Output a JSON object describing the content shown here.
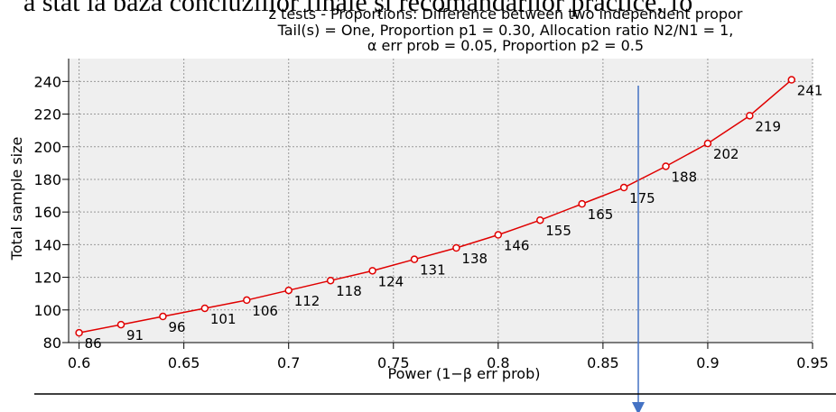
{
  "document_text": "a stat la baza concluziilor finale și recomandărilor practice, fo",
  "chart_data": {
    "type": "line",
    "title": "z tests - Proportions: Difference between two independent propor",
    "subtitle": [
      "Tail(s) = One, Proportion p1 = 0.30, Allocation ratio N2/N1 = 1,",
      "α err prob = 0.05, Proportion p2 = 0.5"
    ],
    "xlabel": "Power (1−β err prob)",
    "ylabel": "Total sample size",
    "x": [
      0.6,
      0.62,
      0.64,
      0.66,
      0.68,
      0.7,
      0.72,
      0.74,
      0.76,
      0.78,
      0.8,
      0.82,
      0.84,
      0.86,
      0.88,
      0.9,
      0.92,
      0.94
    ],
    "values": [
      86,
      91,
      96,
      101,
      106,
      112,
      118,
      124,
      131,
      138,
      146,
      155,
      165,
      175,
      188,
      202,
      219,
      241
    ],
    "color": "#e00000",
    "xlim": [
      0.595,
      0.95
    ],
    "xticks": [
      0.6,
      0.65,
      0.7,
      0.75,
      0.8,
      0.85,
      0.9,
      0.95
    ],
    "ylim": [
      80,
      254
    ],
    "yticks": [
      80,
      100,
      120,
      140,
      160,
      180,
      200,
      220,
      240
    ],
    "grid": true
  }
}
